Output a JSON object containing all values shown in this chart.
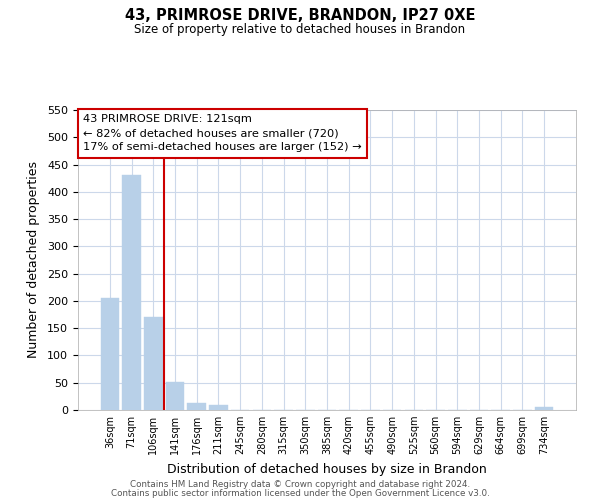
{
  "title": "43, PRIMROSE DRIVE, BRANDON, IP27 0XE",
  "subtitle": "Size of property relative to detached houses in Brandon",
  "xlabel": "Distribution of detached houses by size in Brandon",
  "ylabel": "Number of detached properties",
  "bar_labels": [
    "36sqm",
    "71sqm",
    "106sqm",
    "141sqm",
    "176sqm",
    "211sqm",
    "245sqm",
    "280sqm",
    "315sqm",
    "350sqm",
    "385sqm",
    "420sqm",
    "455sqm",
    "490sqm",
    "525sqm",
    "560sqm",
    "594sqm",
    "629sqm",
    "664sqm",
    "699sqm",
    "734sqm"
  ],
  "bar_values": [
    205,
    430,
    170,
    52,
    13,
    9,
    0,
    0,
    0,
    0,
    0,
    0,
    0,
    0,
    0,
    0,
    0,
    0,
    0,
    0,
    5
  ],
  "bar_color": "#b8d0e8",
  "vline_color": "#cc0000",
  "vline_pos": 2.5,
  "annotation_text_line1": "43 PRIMROSE DRIVE: 121sqm",
  "annotation_text_line2": "← 82% of detached houses are smaller (720)",
  "annotation_text_line3": "17% of semi-detached houses are larger (152) →",
  "ylim": [
    0,
    550
  ],
  "yticks": [
    0,
    50,
    100,
    150,
    200,
    250,
    300,
    350,
    400,
    450,
    500,
    550
  ],
  "footer_line1": "Contains HM Land Registry data © Crown copyright and database right 2024.",
  "footer_line2": "Contains public sector information licensed under the Open Government Licence v3.0.",
  "background_color": "#ffffff",
  "grid_color": "#ccd8ea"
}
